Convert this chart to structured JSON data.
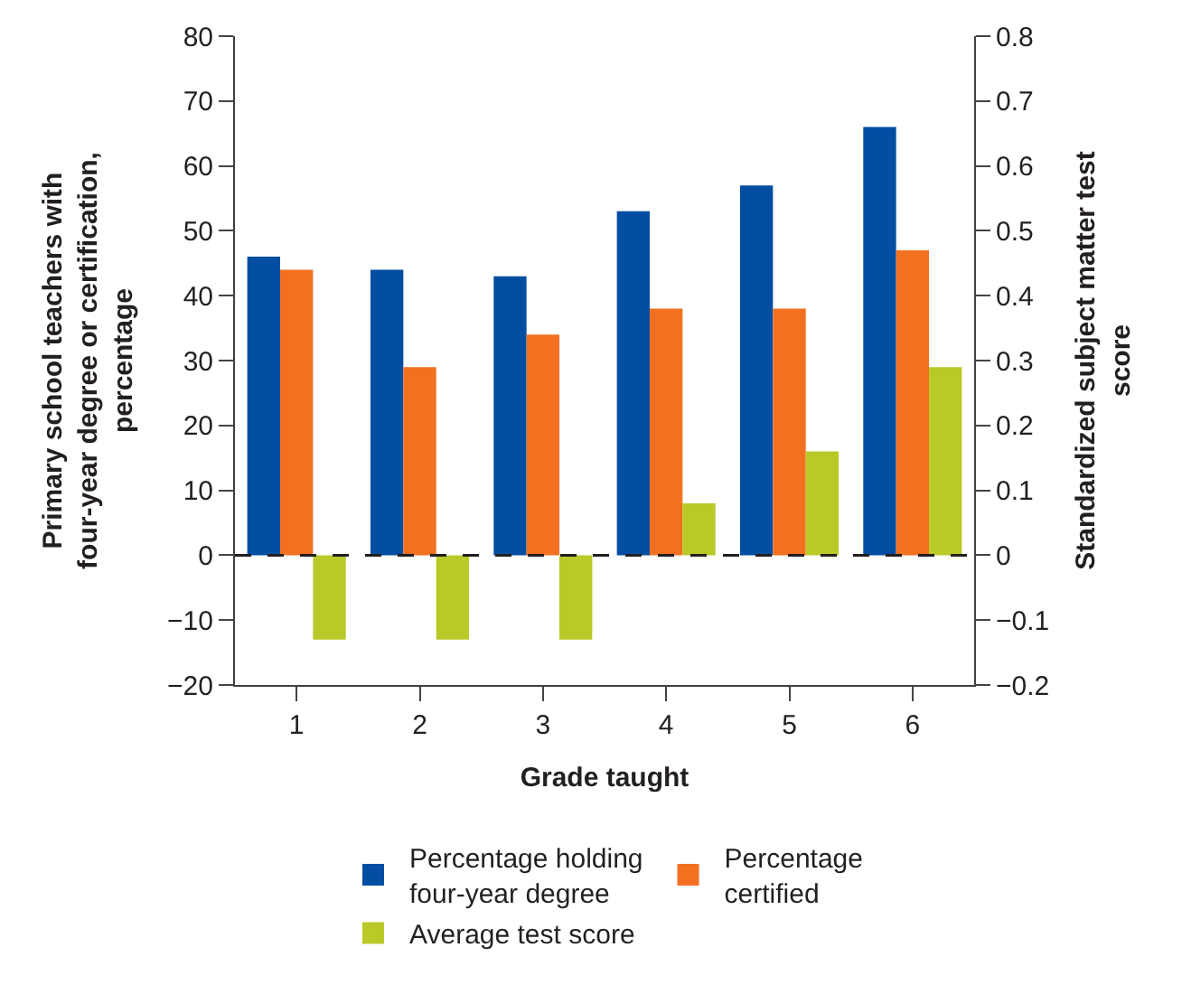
{
  "chart_data": {
    "type": "bar",
    "xlabel": "Grade taught",
    "ylabel": "Primary school teachers with\nfour-year degree or certification,\npercentage",
    "y2label": "Standardized subject matter test\nscore",
    "categories": [
      "1",
      "2",
      "3",
      "4",
      "5",
      "6"
    ],
    "series": [
      {
        "name": "Percentage holding\nfour-year degree",
        "color": "#034ea2",
        "values": [
          46,
          44,
          43,
          53,
          57,
          66
        ]
      },
      {
        "name": "Percentage\ncertified",
        "color": "#f37021",
        "values": [
          44,
          29,
          34,
          38,
          38,
          47
        ]
      },
      {
        "name": "Average test score",
        "color": "#b9c928",
        "values": [
          -0.13,
          -0.13,
          -0.13,
          0.08,
          0.16,
          0.29
        ],
        "axis": "y2"
      }
    ],
    "ylim": [
      -20,
      80
    ],
    "yticks": [
      -20,
      -10,
      0,
      10,
      20,
      30,
      40,
      50,
      60,
      70,
      80
    ],
    "y2lim": [
      -0.2,
      0.8
    ],
    "y2ticks": [
      -0.2,
      -0.1,
      0,
      0.1,
      0.2,
      0.3,
      0.4,
      0.5,
      0.6,
      0.7,
      0.8
    ],
    "ref_lines": [
      {
        "axis": "y",
        "value": 0,
        "color": "#231f20",
        "line_style": "dashed"
      }
    ],
    "legend": "bottom"
  }
}
